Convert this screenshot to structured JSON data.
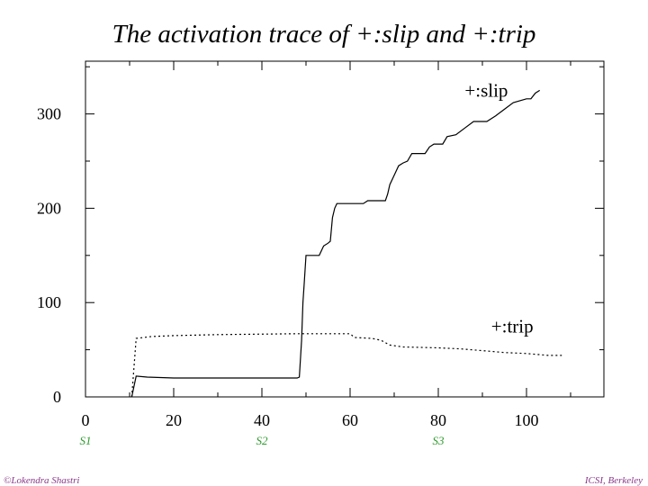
{
  "title": "The activation trace of +:slip and +:trip",
  "footer": {
    "left": "©Lokendra Shastri",
    "right": "ICSI, Berkeley"
  },
  "stages": [
    {
      "label": "S1",
      "x": 0
    },
    {
      "label": "S2",
      "x": 40
    },
    {
      "label": "S3",
      "x": 80
    }
  ],
  "chart_data": {
    "type": "line",
    "title": "The activation trace of +:slip and +:trip",
    "xlabel": "",
    "ylabel": "",
    "xlim": [
      0,
      118
    ],
    "ylim": [
      0,
      350
    ],
    "x_ticks": [
      0,
      20,
      40,
      60,
      80,
      100
    ],
    "y_ticks": [
      0,
      100,
      200,
      300
    ],
    "grid": false,
    "series": [
      {
        "name": "+:slip",
        "style": "solid",
        "points": [
          [
            10.5,
            0
          ],
          [
            11.5,
            22
          ],
          [
            14,
            21
          ],
          [
            20,
            20
          ],
          [
            48,
            20
          ],
          [
            48.5,
            21
          ],
          [
            49,
            60
          ],
          [
            49.3,
            100
          ],
          [
            49.6,
            120
          ],
          [
            50,
            150
          ],
          [
            53,
            150
          ],
          [
            54,
            160
          ],
          [
            55,
            163
          ],
          [
            55.5,
            165
          ],
          [
            56,
            190
          ],
          [
            56.5,
            200
          ],
          [
            57,
            205
          ],
          [
            63,
            205
          ],
          [
            64,
            208
          ],
          [
            68,
            208
          ],
          [
            68.5,
            215
          ],
          [
            69,
            225
          ],
          [
            70,
            235
          ],
          [
            71,
            245
          ],
          [
            72,
            248
          ],
          [
            73,
            250
          ],
          [
            74,
            258
          ],
          [
            77,
            258
          ],
          [
            78,
            265
          ],
          [
            79,
            268
          ],
          [
            81,
            268
          ],
          [
            82,
            276
          ],
          [
            84,
            278
          ],
          [
            86,
            285
          ],
          [
            88,
            292
          ],
          [
            91,
            292
          ],
          [
            93,
            298
          ],
          [
            95,
            305
          ],
          [
            97,
            312
          ],
          [
            100,
            316
          ],
          [
            101,
            316
          ],
          [
            102,
            322
          ],
          [
            103,
            325
          ]
        ]
      },
      {
        "name": "+:trip",
        "style": "dotted",
        "points": [
          [
            10.5,
            0
          ],
          [
            11.5,
            62
          ],
          [
            15,
            64
          ],
          [
            20,
            65
          ],
          [
            30,
            66
          ],
          [
            48,
            67
          ],
          [
            50,
            67
          ],
          [
            60,
            67
          ],
          [
            61,
            63
          ],
          [
            65,
            62
          ],
          [
            67,
            60
          ],
          [
            69,
            55
          ],
          [
            72,
            53
          ],
          [
            80,
            52
          ],
          [
            85,
            51
          ],
          [
            90,
            49
          ],
          [
            95,
            47
          ],
          [
            100,
            46
          ],
          [
            105,
            44
          ],
          [
            108,
            44
          ]
        ]
      }
    ],
    "annotations": [
      {
        "text": "+:slip",
        "x": 86,
        "y": 318
      },
      {
        "text": "+:trip",
        "x": 92,
        "y": 68
      }
    ]
  }
}
